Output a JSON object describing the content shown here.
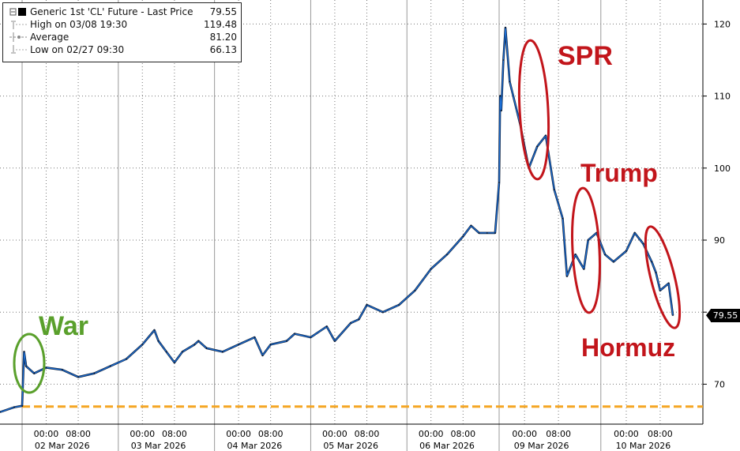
{
  "legend": {
    "title": "Generic 1st 'CL' Future - Last Price",
    "title_value": "79.55",
    "high_label": "High on 03/08 19:30",
    "high_value": "119.48",
    "avg_label": "Average",
    "avg_value": "81.20",
    "low_label": "Low on 02/27 09:30",
    "low_value": "66.13"
  },
  "last_price_tag": "79.55",
  "annotations": {
    "war": "War",
    "spr": "SPR",
    "trump": "Trump",
    "hormuz": "Hormuz"
  },
  "colors": {
    "price_line": "#1c6fd6",
    "price_edge": "#0b1a33",
    "low_line": "#f5a623",
    "war": "#5aa02c",
    "events": "#c2151b",
    "grid": "#777777"
  },
  "chart_data": {
    "type": "line",
    "title": "Generic 1st 'CL' Future - Last Price",
    "ylim": [
      65,
      122
    ],
    "yticks": [
      70,
      80,
      90,
      100,
      110,
      120
    ],
    "ytick_labels": [
      "70",
      "80",
      "90",
      "100",
      "110",
      "120"
    ],
    "y_axis_position": "right",
    "grid": true,
    "legend_position": "top-left",
    "low_reference": 66.13,
    "day_labels": [
      "02 Mar 2026",
      "03 Mar 2026",
      "04 Mar 2026",
      "05 Mar 2026",
      "06 Mar 2026",
      "09 Mar 2026",
      "10 Mar 2026"
    ],
    "time_labels": [
      "00:00",
      "08:00"
    ],
    "series": [
      {
        "name": "Generic 1st 'CL' Future - Last Price",
        "x": [
          "02/27 09:30",
          "02/27 14:00",
          "03/01 18:00",
          "03/01 18:30",
          "03/01 19:00",
          "03/01 21:00",
          "03/02 00:00",
          "03/02 04:00",
          "03/02 08:00",
          "03/02 12:00",
          "03/02 16:00",
          "03/02 20:00",
          "03/03 00:00",
          "03/03 03:00",
          "03/03 04:00",
          "03/03 06:00",
          "03/03 08:00",
          "03/03 10:00",
          "03/03 13:00",
          "03/03 14:00",
          "03/03 16:00",
          "03/03 20:00",
          "03/04 00:00",
          "03/04 04:00",
          "03/04 06:00",
          "03/04 08:00",
          "03/04 12:00",
          "03/04 14:00",
          "03/04 18:00",
          "03/04 22:00",
          "03/05 00:00",
          "03/05 04:00",
          "03/05 06:00",
          "03/05 08:00",
          "03/05 12:00",
          "03/05 16:00",
          "03/05 20:00",
          "03/06 00:00",
          "03/06 04:00",
          "03/06 08:00",
          "03/06 10:00",
          "03/06 12:00",
          "03/06 14:00",
          "03/06 16:00",
          "03/08 18:00",
          "03/08 18:15",
          "03/08 18:30",
          "03/08 19:00",
          "03/08 19:30",
          "03/08 20:30",
          "03/08 23:00",
          "03/09 01:00",
          "03/09 03:00",
          "03/09 05:00",
          "03/09 07:00",
          "03/09 09:00",
          "03/09 10:00",
          "03/09 12:00",
          "03/09 14:00",
          "03/09 15:00",
          "03/09 17:00",
          "03/09 19:00",
          "03/09 21:00",
          "03/10 00:00",
          "03/10 02:00",
          "03/10 04:00",
          "03/10 06:00",
          "03/10 07:00",
          "03/10 08:00",
          "03/10 10:00",
          "03/10 11:00"
        ],
        "values": [
          66.13,
          66.8,
          67.0,
          74.5,
          72.5,
          71.5,
          72.3,
          72.0,
          71.0,
          71.5,
          72.5,
          73.5,
          75.5,
          77.5,
          76.0,
          74.5,
          73.0,
          74.5,
          75.5,
          76.0,
          75.0,
          74.5,
          75.5,
          76.5,
          74.0,
          75.5,
          76.0,
          77.0,
          76.5,
          78.0,
          76.0,
          78.5,
          79.0,
          81.0,
          80.0,
          81.0,
          83.0,
          86.0,
          88.0,
          90.5,
          92.0,
          91.0,
          91.0,
          91.0,
          98.0,
          110.0,
          108.0,
          115.0,
          119.48,
          112.0,
          106.0,
          100.0,
          103.0,
          104.5,
          97.0,
          93.0,
          85.0,
          88.0,
          86.0,
          90.0,
          91.0,
          88.0,
          87.0,
          88.5,
          91.0,
          89.5,
          87.0,
          85.5,
          83.0,
          84.0,
          79.55
        ]
      }
    ]
  }
}
